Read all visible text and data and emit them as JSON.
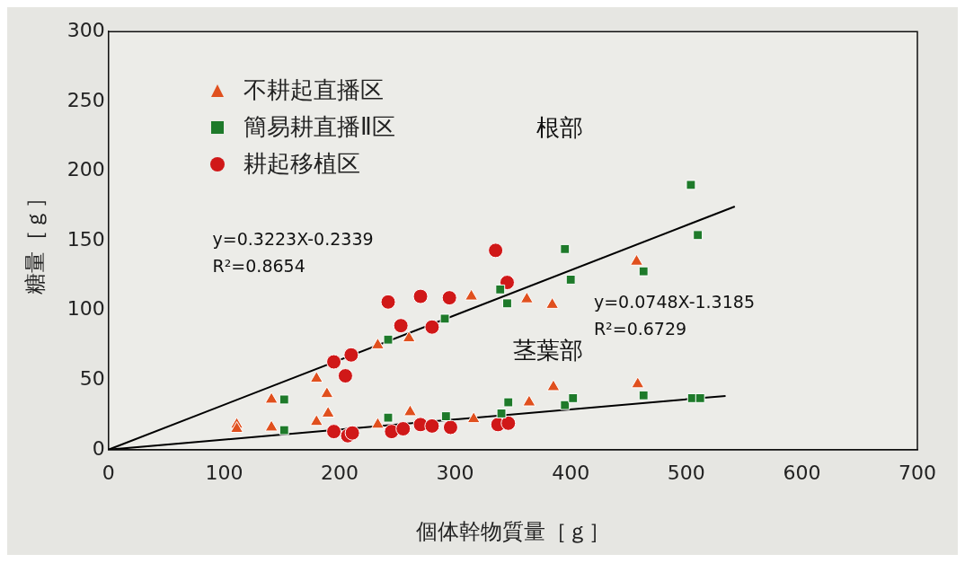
{
  "chart_data": {
    "type": "scatter",
    "xlabel": "個体幹物質量［ｇ］",
    "ylabel": "糖量［ｇ］",
    "xlim": [
      0,
      700
    ],
    "xticks": [
      0,
      100,
      200,
      300,
      400,
      500,
      600,
      700
    ],
    "ylim": [
      0,
      300
    ],
    "yticks": [
      0,
      50,
      100,
      150,
      200,
      250,
      300
    ],
    "grid": false,
    "legend": "top left",
    "annotations": [
      "根部",
      "茎葉部",
      "y=0.3223X-0.2339\nR²=0.8654",
      "y=0.0748X-1.3185\nR²=0.6729"
    ],
    "series": [
      {
        "name": "不耕起直播区",
        "color": "#e0501e",
        "marker": "triangle",
        "x": [
          111,
          111,
          141,
          141,
          180,
          189,
          190,
          180,
          233,
          260,
          314,
          362,
          384,
          457,
          233,
          261,
          316,
          364,
          385,
          458
        ],
        "values": [
          18,
          15,
          36,
          16,
          51,
          40,
          26,
          20,
          75,
          80,
          110,
          108,
          104,
          135,
          18,
          27,
          22,
          34,
          45,
          47
        ]
      },
      {
        "name": "簡易耕直播Ⅱ区",
        "color": "#1e7a2a",
        "marker": "square",
        "x": [
          152,
          152,
          242,
          291,
          339,
          345,
          395,
          400,
          504,
          510,
          463,
          242,
          292,
          340,
          346,
          395,
          402,
          463,
          505,
          512
        ],
        "values": [
          36,
          14,
          79,
          94,
          115,
          105,
          144,
          122,
          190,
          154,
          128,
          23,
          24,
          26,
          34,
          32,
          37,
          39,
          37,
          37
        ]
      },
      {
        "name": "耕起移植区",
        "color": "#d01818",
        "marker": "circle",
        "x": [
          195,
          205,
          210,
          242,
          253,
          270,
          280,
          295,
          335,
          345,
          195,
          207,
          211,
          245,
          255,
          270,
          280,
          296,
          337,
          346
        ],
        "values": [
          63,
          53,
          68,
          106,
          89,
          110,
          88,
          109,
          143,
          120,
          13,
          10,
          12,
          13,
          15,
          18,
          17,
          16,
          18,
          19
        ]
      },
      {
        "type": "line",
        "color": "#000000",
        "marker": "none",
        "x": [
          0,
          542
        ],
        "values": [
          0,
          174.5
        ]
      },
      {
        "type": "line",
        "color": "#000000",
        "marker": "none",
        "x": [
          0,
          534
        ],
        "values": [
          0,
          38.6
        ]
      }
    ]
  }
}
